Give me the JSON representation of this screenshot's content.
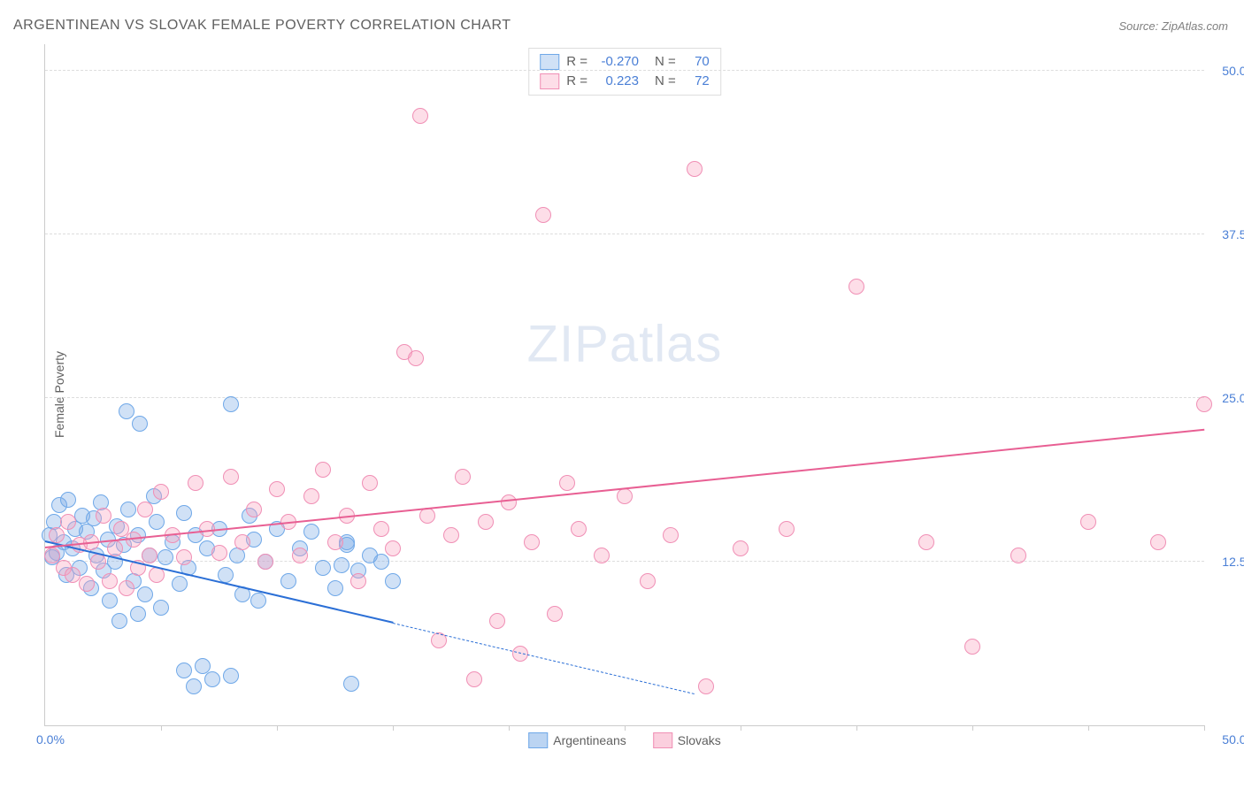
{
  "title": "ARGENTINEAN VS SLOVAK FEMALE POVERTY CORRELATION CHART",
  "source_label": "Source: ZipAtlas.com",
  "ylabel": "Female Poverty",
  "watermark_a": "ZIP",
  "watermark_b": "atlas",
  "x_origin_label": "0.0%",
  "x_max_label": "50.0%",
  "chart": {
    "type": "scatter",
    "xlim": [
      0,
      50
    ],
    "ylim": [
      0,
      52
    ],
    "ytick_values": [
      12.5,
      25.0,
      37.5,
      50.0
    ],
    "ytick_labels": [
      "12.5%",
      "25.0%",
      "37.5%",
      "50.0%"
    ],
    "xtick_values": [
      5,
      10,
      15,
      20,
      25,
      30,
      35,
      40,
      45,
      50
    ],
    "background_color": "#ffffff",
    "grid_color": "#dddddd",
    "marker_radius": 8,
    "marker_border_width": 1.5,
    "series": [
      {
        "name": "Argentineans",
        "fill_color": "rgba(120,170,230,0.35)",
        "border_color": "#6fa8e8",
        "trend_color": "#2b6fd6",
        "R": "-0.270",
        "N": "70",
        "trend": {
          "x1": 0,
          "y1": 14.0,
          "x2_solid": 15,
          "y2_solid": 7.8,
          "x2_dash": 28,
          "y2_dash": 2.4
        },
        "points": [
          [
            0.2,
            14.5
          ],
          [
            0.3,
            12.8
          ],
          [
            0.4,
            15.5
          ],
          [
            0.5,
            13.2
          ],
          [
            0.6,
            16.8
          ],
          [
            0.8,
            14.0
          ],
          [
            0.9,
            11.5
          ],
          [
            1.0,
            17.2
          ],
          [
            1.2,
            13.5
          ],
          [
            1.3,
            15.0
          ],
          [
            1.5,
            12.0
          ],
          [
            1.6,
            16.0
          ],
          [
            1.8,
            14.8
          ],
          [
            2.0,
            10.5
          ],
          [
            2.1,
            15.8
          ],
          [
            2.2,
            13.0
          ],
          [
            2.4,
            17.0
          ],
          [
            2.5,
            11.8
          ],
          [
            2.7,
            14.2
          ],
          [
            2.8,
            9.5
          ],
          [
            3.0,
            12.5
          ],
          [
            3.1,
            15.2
          ],
          [
            3.2,
            8.0
          ],
          [
            3.4,
            13.8
          ],
          [
            3.5,
            24.0
          ],
          [
            3.6,
            16.5
          ],
          [
            3.8,
            11.0
          ],
          [
            4.0,
            14.5
          ],
          [
            4.1,
            23.0
          ],
          [
            4.3,
            10.0
          ],
          [
            4.5,
            13.0
          ],
          [
            4.7,
            17.5
          ],
          [
            4.8,
            15.5
          ],
          [
            5.0,
            9.0
          ],
          [
            5.2,
            12.8
          ],
          [
            5.5,
            14.0
          ],
          [
            5.8,
            10.8
          ],
          [
            6.0,
            16.2
          ],
          [
            6.0,
            4.2
          ],
          [
            6.2,
            12.0
          ],
          [
            6.4,
            3.0
          ],
          [
            6.5,
            14.5
          ],
          [
            6.8,
            4.5
          ],
          [
            7.0,
            13.5
          ],
          [
            7.2,
            3.5
          ],
          [
            7.5,
            15.0
          ],
          [
            7.8,
            11.5
          ],
          [
            8.0,
            24.5
          ],
          [
            8.0,
            3.8
          ],
          [
            8.3,
            13.0
          ],
          [
            8.5,
            10.0
          ],
          [
            9.0,
            14.2
          ],
          [
            9.5,
            12.5
          ],
          [
            10.0,
            15.0
          ],
          [
            10.5,
            11.0
          ],
          [
            11.0,
            13.5
          ],
          [
            11.5,
            14.8
          ],
          [
            12.0,
            12.0
          ],
          [
            12.5,
            10.5
          ],
          [
            13.0,
            14.0
          ],
          [
            13.2,
            3.2
          ],
          [
            13.5,
            11.8
          ],
          [
            14.0,
            13.0
          ],
          [
            14.5,
            12.5
          ],
          [
            15.0,
            11.0
          ],
          [
            12.8,
            12.2
          ],
          [
            13.0,
            13.8
          ],
          [
            8.8,
            16.0
          ],
          [
            9.2,
            9.5
          ],
          [
            4.0,
            8.5
          ]
        ]
      },
      {
        "name": "Slovaks",
        "fill_color": "rgba(248,160,190,0.35)",
        "border_color": "#f08fb5",
        "trend_color": "#e85f93",
        "R": "0.223",
        "N": "72",
        "trend": {
          "x1": 0,
          "y1": 13.5,
          "x2_solid": 50,
          "y2_solid": 22.5,
          "x2_dash": 50,
          "y2_dash": 22.5
        },
        "points": [
          [
            0.3,
            13.0
          ],
          [
            0.5,
            14.5
          ],
          [
            0.8,
            12.0
          ],
          [
            1.0,
            15.5
          ],
          [
            1.2,
            11.5
          ],
          [
            1.5,
            13.8
          ],
          [
            1.8,
            10.8
          ],
          [
            2.0,
            14.0
          ],
          [
            2.3,
            12.5
          ],
          [
            2.5,
            16.0
          ],
          [
            2.8,
            11.0
          ],
          [
            3.0,
            13.5
          ],
          [
            3.3,
            15.0
          ],
          [
            3.5,
            10.5
          ],
          [
            3.8,
            14.2
          ],
          [
            4.0,
            12.0
          ],
          [
            4.3,
            16.5
          ],
          [
            4.5,
            13.0
          ],
          [
            4.8,
            11.5
          ],
          [
            5.0,
            17.8
          ],
          [
            5.5,
            14.5
          ],
          [
            6.0,
            12.8
          ],
          [
            6.5,
            18.5
          ],
          [
            7.0,
            15.0
          ],
          [
            7.5,
            13.2
          ],
          [
            8.0,
            19.0
          ],
          [
            8.5,
            14.0
          ],
          [
            9.0,
            16.5
          ],
          [
            9.5,
            12.5
          ],
          [
            10.0,
            18.0
          ],
          [
            10.5,
            15.5
          ],
          [
            11.0,
            13.0
          ],
          [
            11.5,
            17.5
          ],
          [
            12.0,
            19.5
          ],
          [
            12.5,
            14.0
          ],
          [
            13.0,
            16.0
          ],
          [
            13.5,
            11.0
          ],
          [
            14.0,
            18.5
          ],
          [
            14.5,
            15.0
          ],
          [
            15.0,
            13.5
          ],
          [
            15.5,
            28.5
          ],
          [
            16.0,
            28.0
          ],
          [
            16.2,
            46.5
          ],
          [
            16.5,
            16.0
          ],
          [
            17.0,
            6.5
          ],
          [
            17.5,
            14.5
          ],
          [
            18.0,
            19.0
          ],
          [
            18.5,
            3.5
          ],
          [
            19.0,
            15.5
          ],
          [
            19.5,
            8.0
          ],
          [
            20.0,
            17.0
          ],
          [
            20.5,
            5.5
          ],
          [
            21.0,
            14.0
          ],
          [
            21.5,
            39.0
          ],
          [
            22.0,
            8.5
          ],
          [
            22.5,
            18.5
          ],
          [
            23.0,
            15.0
          ],
          [
            24.0,
            13.0
          ],
          [
            25.0,
            17.5
          ],
          [
            26.0,
            11.0
          ],
          [
            27.0,
            14.5
          ],
          [
            28.0,
            42.5
          ],
          [
            28.5,
            3.0
          ],
          [
            30.0,
            13.5
          ],
          [
            32.0,
            15.0
          ],
          [
            35.0,
            33.5
          ],
          [
            38.0,
            14.0
          ],
          [
            40.0,
            6.0
          ],
          [
            42.0,
            13.0
          ],
          [
            45.0,
            15.5
          ],
          [
            48.0,
            14.0
          ],
          [
            50.0,
            24.5
          ]
        ]
      }
    ]
  },
  "legend_items": [
    {
      "label": "Argentineans",
      "fill": "rgba(120,170,230,0.5)",
      "border": "#6fa8e8"
    },
    {
      "label": "Slovaks",
      "fill": "rgba(248,160,190,0.5)",
      "border": "#f08fb5"
    }
  ]
}
